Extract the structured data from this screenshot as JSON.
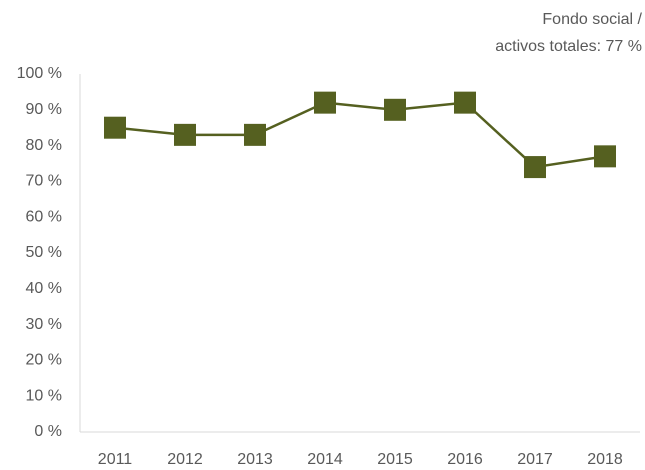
{
  "chart_data": {
    "type": "line",
    "annotation": [
      "Fondo social /",
      "activos totales: 77 %"
    ],
    "categories": [
      "2011",
      "2012",
      "2013",
      "2014",
      "2015",
      "2016",
      "2017",
      "2018"
    ],
    "values": [
      85,
      83,
      83,
      92,
      90,
      92,
      74,
      77
    ],
    "color": "#556020",
    "ylim": [
      0,
      100
    ],
    "yticks": [
      {
        "value": 0,
        "label": "0 %"
      },
      {
        "value": 10,
        "label": "10 %"
      },
      {
        "value": 20,
        "label": "20 %"
      },
      {
        "value": 30,
        "label": "30 %"
      },
      {
        "value": 40,
        "label": "40 %"
      },
      {
        "value": 50,
        "label": "50 %"
      },
      {
        "value": 60,
        "label": "60 %"
      },
      {
        "value": 70,
        "label": "70 %"
      },
      {
        "value": 80,
        "label": "80 %"
      },
      {
        "value": 90,
        "label": "90 %"
      },
      {
        "value": 100,
        "label": "100 %"
      }
    ],
    "grid": false
  }
}
